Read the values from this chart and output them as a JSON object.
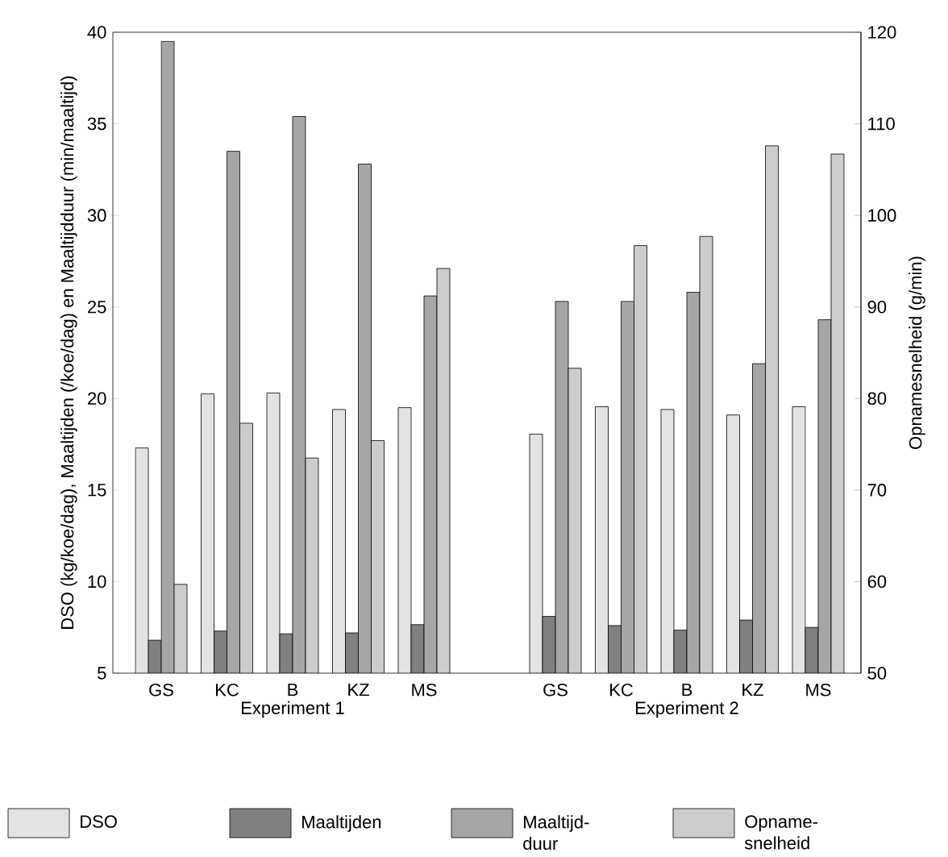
{
  "chart_data": {
    "type": "bar",
    "ylabel": "DSO (kg/koe/dag), Maaltijden (/koe/dag) en Maaltijdduur (min/maaltijd)",
    "y2label": "Opnamesnelheid (g/min)",
    "categories": [
      "GS",
      "KC",
      "B",
      "KZ",
      "MS",
      null,
      "GS",
      "KC",
      "B",
      "KZ",
      "MS"
    ],
    "series": [
      {
        "name": "DSO",
        "color": "#e3e3e3",
        "values": [
          17.3,
          20.25,
          20.3,
          19.4,
          19.5,
          null,
          18.05,
          19.55,
          19.4,
          19.1,
          19.55
        ]
      },
      {
        "name": "Maaltijden",
        "color": "#808080",
        "values": [
          6.8,
          7.3,
          7.15,
          7.2,
          7.65,
          null,
          8.1,
          7.6,
          7.35,
          7.9,
          7.5
        ]
      },
      {
        "name": "Maaltijd-duur",
        "color": "#a6a6a6",
        "values": [
          39.5,
          33.5,
          35.4,
          32.8,
          25.6,
          null,
          25.3,
          25.3,
          25.8,
          21.9,
          24.3
        ]
      },
      {
        "name": "Opname-snelheid",
        "color": "#cccccc",
        "axis": "y2",
        "values": [
          59.7,
          77.3,
          73.5,
          75.4,
          94.2,
          null,
          83.3,
          96.7,
          97.7,
          107.6,
          106.7
        ]
      }
    ],
    "ylim": [
      5,
      40
    ],
    "yticks": [
      5,
      10,
      15,
      20,
      25,
      30,
      35,
      40
    ],
    "y2lim": [
      50,
      120
    ],
    "y2ticks": [
      50,
      60,
      70,
      80,
      90,
      100,
      110,
      120
    ],
    "annotations": [
      "Experiment 1",
      "Experiment 2"
    ],
    "legend": "bottom"
  }
}
